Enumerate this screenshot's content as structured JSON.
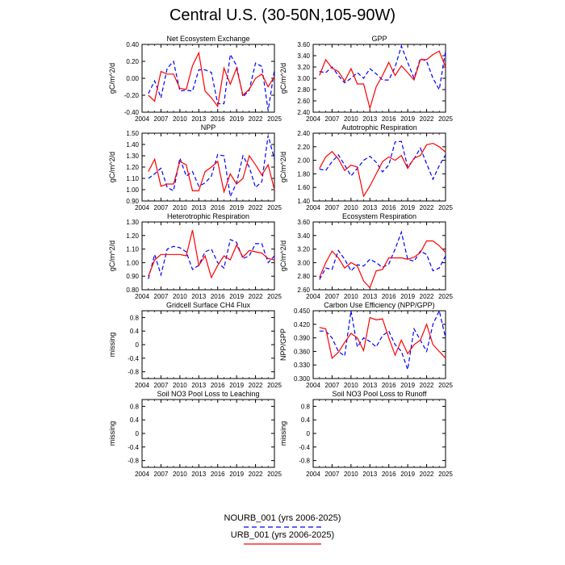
{
  "title": "Central U.S. (30-50N,105-90W)",
  "legend": [
    {
      "label": "NOURB_001 (yrs 2006-2025)",
      "color": "#0000ff",
      "style": "dashed"
    },
    {
      "label": "URB_001 (yrs 2006-2025)",
      "color": "#ff0000",
      "style": "solid"
    }
  ],
  "chart_data": [
    {
      "type": "line",
      "title": "Net Ecosystem Exchange",
      "xlabel": "",
      "ylabel": "gC/m^2/d",
      "xlim": [
        2004,
        2025
      ],
      "ylim": [
        -0.4,
        0.4
      ],
      "xticks": [
        "2004",
        "2007",
        "2010",
        "2013",
        "2016",
        "2019",
        "2022",
        "2025"
      ],
      "yticks": [
        "-0.40",
        "-0.20",
        "0.00",
        "0.20",
        "0.40"
      ],
      "x": [
        2005,
        2006,
        2007,
        2008,
        2009,
        2010,
        2011,
        2012,
        2013,
        2014,
        2015,
        2016,
        2017,
        2018,
        2019,
        2020,
        2021,
        2022,
        2023,
        2024,
        2025
      ],
      "series": [
        {
          "name": "NOURB_001 (yrs 2006-2025)",
          "values": [
            -0.18,
            -0.03,
            -0.23,
            0.12,
            0.2,
            -0.15,
            -0.14,
            -0.15,
            0.1,
            0.1,
            0.07,
            -0.3,
            -0.3,
            0.28,
            0.15,
            -0.22,
            -0.14,
            0.18,
            0.14,
            -0.38,
            0.1
          ]
        },
        {
          "name": "URB_001 (yrs 2006-2025)",
          "values": [
            -0.2,
            -0.27,
            0.08,
            0.05,
            0.05,
            -0.12,
            -0.13,
            0.15,
            0.3,
            -0.15,
            -0.23,
            -0.33,
            0.12,
            -0.07,
            0.12,
            -0.2,
            -0.13,
            0.0,
            0.05,
            -0.1,
            0.02
          ]
        }
      ]
    },
    {
      "type": "line",
      "title": "GPP",
      "xlabel": "",
      "ylabel": "gC/m^2/d",
      "xlim": [
        2004,
        2025
      ],
      "ylim": [
        2.4,
        3.6
      ],
      "xticks": [
        "2004",
        "2007",
        "2010",
        "2013",
        "2016",
        "2019",
        "2022",
        "2025"
      ],
      "yticks": [
        "2.40",
        "2.60",
        "2.80",
        "3.00",
        "3.20",
        "3.40",
        "3.60"
      ],
      "x": [
        2005,
        2006,
        2007,
        2008,
        2009,
        2010,
        2011,
        2012,
        2013,
        2014,
        2015,
        2016,
        2017,
        2018,
        2019,
        2020,
        2021,
        2022,
        2023,
        2024,
        2025
      ],
      "series": [
        {
          "name": "NOURB_001 (yrs 2006-2025)",
          "values": [
            3.12,
            3.1,
            3.2,
            3.05,
            2.92,
            3.0,
            3.1,
            3.0,
            3.17,
            3.08,
            2.97,
            2.97,
            3.2,
            3.57,
            3.28,
            3.0,
            3.35,
            3.3,
            3.0,
            2.8,
            3.48
          ]
        },
        {
          "name": "URB_001 (yrs 2006-2025)",
          "values": [
            3.05,
            3.33,
            3.18,
            3.12,
            2.95,
            3.17,
            2.9,
            2.9,
            2.47,
            2.85,
            3.05,
            3.28,
            3.05,
            3.22,
            3.1,
            2.97,
            3.33,
            3.33,
            3.42,
            3.48,
            3.2
          ]
        }
      ]
    },
    {
      "type": "line",
      "title": "NPP",
      "xlabel": "",
      "ylabel": "gC/m^2/d",
      "xlim": [
        2004,
        2025
      ],
      "ylim": [
        0.9,
        1.5
      ],
      "xticks": [
        "2004",
        "2007",
        "2010",
        "2013",
        "2016",
        "2019",
        "2022",
        "2025"
      ],
      "yticks": [
        "0.90",
        "1.00",
        "1.10",
        "1.20",
        "1.30",
        "1.40",
        "1.50"
      ],
      "x": [
        2005,
        2006,
        2007,
        2008,
        2009,
        2010,
        2011,
        2012,
        2013,
        2014,
        2015,
        2016,
        2017,
        2018,
        2019,
        2020,
        2021,
        2022,
        2023,
        2024,
        2025
      ],
      "series": [
        {
          "name": "NOURB_001 (yrs 2006-2025)",
          "values": [
            1.1,
            1.14,
            1.19,
            1.02,
            0.99,
            1.28,
            1.12,
            1.16,
            1.03,
            1.06,
            1.12,
            1.31,
            1.3,
            0.94,
            1.06,
            1.3,
            1.2,
            1.02,
            1.07,
            1.48,
            1.27
          ]
        },
        {
          "name": "URB_001 (yrs 2006-2025)",
          "values": [
            1.16,
            1.27,
            1.03,
            1.05,
            1.05,
            1.25,
            1.22,
            0.99,
            0.99,
            1.16,
            1.2,
            1.25,
            0.98,
            1.14,
            1.05,
            1.1,
            1.3,
            1.22,
            1.13,
            1.22,
            1.0
          ]
        }
      ]
    },
    {
      "type": "line",
      "title": "Autotrophic Respiration",
      "xlabel": "",
      "ylabel": "gC/m^2/d",
      "xlim": [
        2004,
        2025
      ],
      "ylim": [
        1.4,
        2.4
      ],
      "xticks": [
        "2004",
        "2007",
        "2010",
        "2013",
        "2016",
        "2019",
        "2022",
        "2025"
      ],
      "yticks": [
        "1.40",
        "1.60",
        "1.80",
        "2.00",
        "2.20",
        "2.40"
      ],
      "x": [
        2005,
        2006,
        2007,
        2008,
        2009,
        2010,
        2011,
        2012,
        2013,
        2014,
        2015,
        2016,
        2017,
        2018,
        2019,
        2020,
        2021,
        2022,
        2023,
        2024,
        2025
      ],
      "series": [
        {
          "name": "NOURB_001 (yrs 2006-2025)",
          "values": [
            1.87,
            1.85,
            1.98,
            2.08,
            1.93,
            1.77,
            1.88,
            2.0,
            2.06,
            1.97,
            1.83,
            1.93,
            2.27,
            2.28,
            1.9,
            2.02,
            2.18,
            1.95,
            1.72,
            1.92,
            2.08
          ]
        },
        {
          "name": "URB_001 (yrs 2006-2025)",
          "values": [
            1.88,
            2.05,
            2.13,
            2.02,
            1.85,
            1.93,
            1.9,
            1.47,
            1.62,
            1.8,
            1.98,
            2.05,
            2.0,
            2.07,
            1.88,
            2.03,
            2.07,
            2.23,
            2.25,
            2.2,
            2.12
          ]
        }
      ]
    },
    {
      "type": "line",
      "title": "Heterotrophic Respiration",
      "xlabel": "",
      "ylabel": "gC/m^2/d",
      "xlim": [
        2004,
        2025
      ],
      "ylim": [
        0.8,
        1.3
      ],
      "xticks": [
        "2004",
        "2007",
        "2010",
        "2013",
        "2016",
        "2019",
        "2022",
        "2025"
      ],
      "yticks": [
        "0.80",
        "0.90",
        "1.00",
        "1.10",
        "1.20",
        "1.30"
      ],
      "x": [
        2005,
        2006,
        2007,
        2008,
        2009,
        2010,
        2011,
        2012,
        2013,
        2014,
        2015,
        2016,
        2017,
        2018,
        2019,
        2020,
        2021,
        2022,
        2023,
        2024,
        2025
      ],
      "series": [
        {
          "name": "NOURB_001 (yrs 2006-2025)",
          "values": [
            0.88,
            1.06,
            0.91,
            1.1,
            1.12,
            1.11,
            1.08,
            0.95,
            0.98,
            1.08,
            1.1,
            1.0,
            0.96,
            1.17,
            1.15,
            1.03,
            1.05,
            1.14,
            1.14,
            1.0,
            1.05
          ]
        },
        {
          "name": "URB_001 (yrs 2006-2025)",
          "values": [
            0.9,
            1.02,
            1.06,
            1.06,
            1.06,
            1.06,
            1.05,
            1.24,
            0.98,
            1.05,
            0.89,
            0.98,
            1.05,
            1.02,
            1.13,
            1.04,
            1.09,
            1.08,
            1.07,
            1.03,
            1.02
          ]
        }
      ]
    },
    {
      "type": "line",
      "title": "Ecosystem Respiration",
      "xlabel": "",
      "ylabel": "gC/m^2/d",
      "xlim": [
        2004,
        2025
      ],
      "ylim": [
        2.6,
        3.6
      ],
      "xticks": [
        "2004",
        "2007",
        "2010",
        "2013",
        "2016",
        "2019",
        "2022",
        "2025"
      ],
      "yticks": [
        "2.60",
        "2.80",
        "3.00",
        "3.20",
        "3.40",
        "3.60"
      ],
      "x": [
        2005,
        2006,
        2007,
        2008,
        2009,
        2010,
        2011,
        2012,
        2013,
        2014,
        2015,
        2016,
        2017,
        2018,
        2019,
        2020,
        2021,
        2022,
        2023,
        2024,
        2025
      ],
      "series": [
        {
          "name": "NOURB_001 (yrs 2006-2025)",
          "values": [
            2.75,
            2.92,
            2.9,
            3.18,
            3.05,
            2.88,
            2.97,
            2.95,
            3.05,
            3.0,
            2.93,
            2.98,
            3.2,
            3.45,
            3.05,
            3.02,
            3.17,
            3.12,
            2.88,
            2.92,
            3.1
          ]
        },
        {
          "name": "URB_001 (yrs 2006-2025)",
          "values": [
            2.78,
            3.0,
            3.17,
            3.07,
            2.92,
            3.0,
            2.95,
            2.73,
            2.63,
            2.88,
            2.9,
            3.07,
            3.07,
            3.07,
            3.05,
            3.08,
            3.15,
            3.32,
            3.32,
            3.25,
            3.15
          ]
        }
      ]
    },
    {
      "type": "line",
      "title": "Gridcell Surface CH4 Flux",
      "xlabel": "",
      "ylabel": "missing",
      "xlim": [
        2004,
        2025
      ],
      "ylim": [
        -1,
        1
      ],
      "xticks": [
        "2004",
        "2007",
        "2010",
        "2013",
        "2016",
        "2019",
        "2022",
        "2025"
      ],
      "yticks": [
        "-0.8",
        "-0.4",
        "0",
        "0.4",
        "0.8"
      ],
      "ytick_values": [
        -0.8,
        -0.4,
        0,
        0.4,
        0.8
      ],
      "x": [],
      "series": []
    },
    {
      "type": "line",
      "title": "Carbon Use Efficiency (NPP/GPP)",
      "xlabel": "",
      "ylabel": "NPP/GPP",
      "xlim": [
        2004,
        2025
      ],
      "ylim": [
        0.3,
        0.45
      ],
      "xticks": [
        "2004",
        "2007",
        "2010",
        "2013",
        "2016",
        "2019",
        "2022",
        "2025"
      ],
      "yticks": [
        "0.300",
        "0.330",
        "0.360",
        "0.390",
        "0.420",
        "0.450"
      ],
      "x": [
        2005,
        2006,
        2007,
        2008,
        2009,
        2010,
        2011,
        2012,
        2013,
        2014,
        2015,
        2016,
        2017,
        2018,
        2019,
        2020,
        2021,
        2022,
        2023,
        2024,
        2025
      ],
      "series": [
        {
          "name": "NOURB_001 (yrs 2006-2025)",
          "values": [
            0.405,
            0.405,
            0.39,
            0.36,
            0.35,
            0.45,
            0.37,
            0.39,
            0.382,
            0.37,
            0.395,
            0.405,
            0.375,
            0.36,
            0.32,
            0.41,
            0.385,
            0.36,
            0.42,
            0.45,
            0.39
          ]
        },
        {
          "name": "URB_001 (yrs 2006-2025)",
          "values": [
            0.413,
            0.41,
            0.345,
            0.358,
            0.38,
            0.4,
            0.39,
            0.362,
            0.435,
            0.43,
            0.432,
            0.39,
            0.352,
            0.385,
            0.355,
            0.375,
            0.385,
            0.42,
            0.375,
            0.36,
            0.345
          ]
        }
      ]
    },
    {
      "type": "line",
      "title": "Soil NO3 Pool Loss to Leaching",
      "xlabel": "",
      "ylabel": "missing",
      "xlim": [
        2004,
        2025
      ],
      "ylim": [
        -1,
        1
      ],
      "xticks": [
        "2004",
        "2007",
        "2010",
        "2013",
        "2016",
        "2019",
        "2022",
        "2025"
      ],
      "yticks": [
        "-0.8",
        "-0.4",
        "0",
        "0.4",
        "0.8"
      ],
      "ytick_values": [
        -0.8,
        -0.4,
        0,
        0.4,
        0.8
      ],
      "x": [],
      "series": []
    },
    {
      "type": "line",
      "title": "Soil NO3 Pool Loss to Runoff",
      "xlabel": "",
      "ylabel": "missing",
      "xlim": [
        2004,
        2025
      ],
      "ylim": [
        -1,
        1
      ],
      "xticks": [
        "2004",
        "2007",
        "2010",
        "2013",
        "2016",
        "2019",
        "2022",
        "2025"
      ],
      "yticks": [
        "-0.8",
        "-0.4",
        "0",
        "0.4",
        "0.8"
      ],
      "ytick_values": [
        -0.8,
        -0.4,
        0,
        0.4,
        0.8
      ],
      "x": [],
      "series": []
    }
  ]
}
